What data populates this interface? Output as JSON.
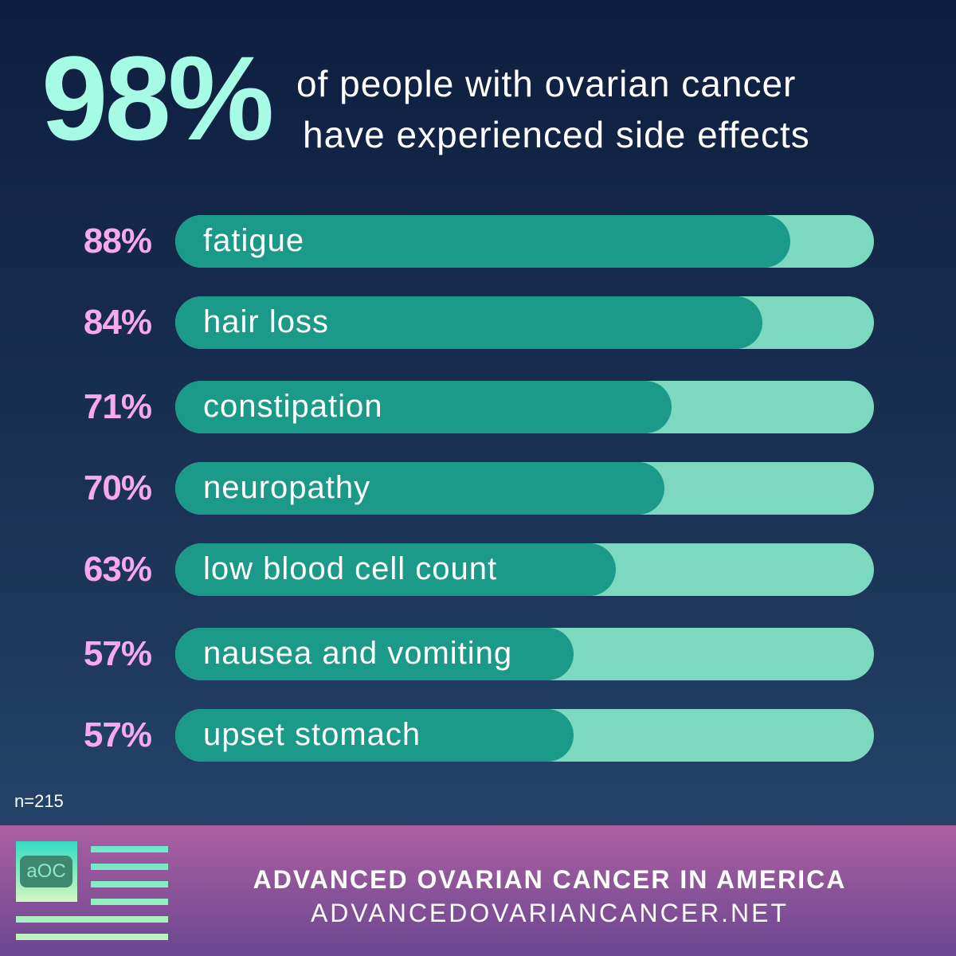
{
  "headline": {
    "stat": "98%",
    "line1": "of people with ovarian cancer",
    "line2": "have experienced side effects"
  },
  "chart_data": {
    "type": "bar",
    "orientation": "horizontal",
    "xlim": [
      0,
      100
    ],
    "categories": [
      "fatigue",
      "hair loss",
      "constipation",
      "neuropathy",
      "low blood cell count",
      "nausea and vomiting",
      "upset stomach"
    ],
    "values": [
      88,
      84,
      71,
      70,
      63,
      57,
      57
    ],
    "value_labels": [
      "88%",
      "84%",
      "71%",
      "70%",
      "63%",
      "57%",
      "57%"
    ],
    "colors": {
      "fill": "#1b9a89",
      "track": "#7dd8c0",
      "value_label": "#f6a9ee"
    }
  },
  "sample_size": "n=215",
  "footer": {
    "logo_text": "aOC",
    "title": "ADVANCED OVARIAN CANCER IN AMERICA",
    "url": "ADVANCEDOVARIANCANCER.NET"
  }
}
